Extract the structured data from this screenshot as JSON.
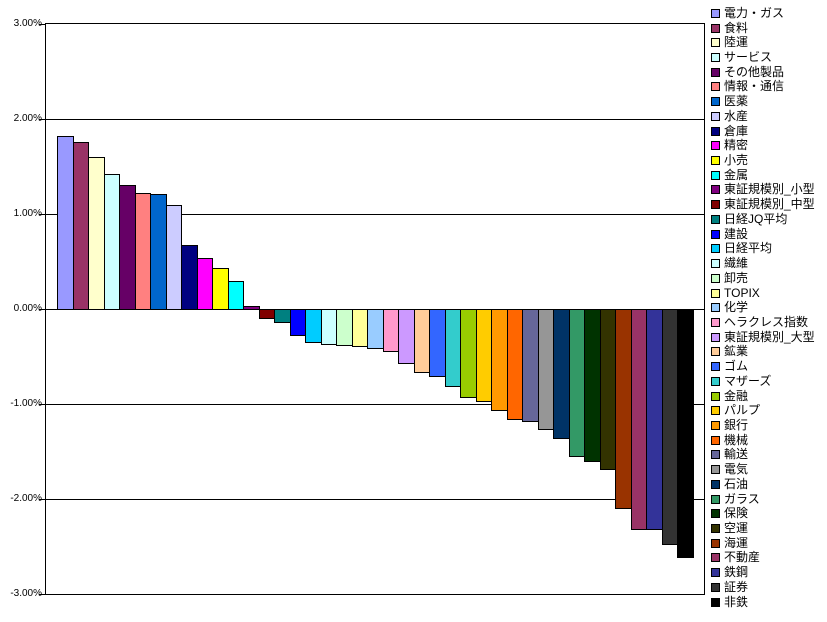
{
  "chart_data": {
    "type": "bar",
    "title": "",
    "xlabel": "",
    "ylabel": "",
    "ylim": [
      -3,
      3
    ],
    "grid": "horizontal-1pct",
    "legend_position": "right",
    "background": "#ffffff",
    "yticks": [
      {
        "label": "3.00%",
        "value": 3
      },
      {
        "label": "2.00%",
        "value": 2
      },
      {
        "label": "1.00%",
        "value": 1
      },
      {
        "label": "0.00%",
        "value": 0
      },
      {
        "label": "-1.00%",
        "value": -1
      },
      {
        "label": "-2.00%",
        "value": -2
      },
      {
        "label": "-3.00%",
        "value": -3
      }
    ],
    "series": [
      {
        "label": "電力・ガス",
        "value": 1.82,
        "color": "#9999FF"
      },
      {
        "label": "食料",
        "value": 1.76,
        "color": "#993366"
      },
      {
        "label": "陸運",
        "value": 1.6,
        "color": "#FFFFCC"
      },
      {
        "label": "サービス",
        "value": 1.42,
        "color": "#CCFFFF"
      },
      {
        "label": "その他製品",
        "value": 1.3,
        "color": "#660066"
      },
      {
        "label": "情報・通信",
        "value": 1.22,
        "color": "#FF8080"
      },
      {
        "label": "医薬",
        "value": 1.21,
        "color": "#0066CC"
      },
      {
        "label": "水産",
        "value": 1.09,
        "color": "#CCCCFF"
      },
      {
        "label": "倉庫",
        "value": 0.67,
        "color": "#000080"
      },
      {
        "label": "精密",
        "value": 0.54,
        "color": "#FF00FF"
      },
      {
        "label": "小売",
        "value": 0.43,
        "color": "#FFFF00"
      },
      {
        "label": "金属",
        "value": 0.29,
        "color": "#00FFFF"
      },
      {
        "label": "東証規模別_小型",
        "value": 0.03,
        "color": "#800080"
      },
      {
        "label": "東証規模別_中型",
        "value": -0.09,
        "color": "#800000"
      },
      {
        "label": "日経JQ平均",
        "value": -0.14,
        "color": "#008080"
      },
      {
        "label": "建設",
        "value": -0.27,
        "color": "#0000FF"
      },
      {
        "label": "日経平均",
        "value": -0.35,
        "color": "#00CCFF"
      },
      {
        "label": "繊維",
        "value": -0.37,
        "color": "#CCFFFF"
      },
      {
        "label": "卸売",
        "value": -0.38,
        "color": "#CCFFCC"
      },
      {
        "label": "TOPIX",
        "value": -0.39,
        "color": "#FFFF99"
      },
      {
        "label": "化学",
        "value": -0.41,
        "color": "#99CCFF"
      },
      {
        "label": "ヘラクレス指数",
        "value": -0.44,
        "color": "#FF99CC"
      },
      {
        "label": "東証規模別_大型",
        "value": -0.57,
        "color": "#CC99FF"
      },
      {
        "label": "鉱業",
        "value": -0.66,
        "color": "#FFCC99"
      },
      {
        "label": "ゴム",
        "value": -0.71,
        "color": "#3366FF"
      },
      {
        "label": "マザーズ",
        "value": -0.81,
        "color": "#33CCCC"
      },
      {
        "label": "金融",
        "value": -0.93,
        "color": "#99CC00"
      },
      {
        "label": "パルプ",
        "value": -0.97,
        "color": "#FFCC00"
      },
      {
        "label": "銀行",
        "value": -1.06,
        "color": "#FF9900"
      },
      {
        "label": "機械",
        "value": -1.16,
        "color": "#FF6600"
      },
      {
        "label": "輸送",
        "value": -1.18,
        "color": "#666699"
      },
      {
        "label": "電気",
        "value": -1.26,
        "color": "#969696"
      },
      {
        "label": "石油",
        "value": -1.36,
        "color": "#003366"
      },
      {
        "label": "ガラス",
        "value": -1.55,
        "color": "#339966"
      },
      {
        "label": "保険",
        "value": -1.6,
        "color": "#003300"
      },
      {
        "label": "空運",
        "value": -1.68,
        "color": "#333300"
      },
      {
        "label": "海運",
        "value": -2.09,
        "color": "#993300"
      },
      {
        "label": "不動産",
        "value": -2.32,
        "color": "#993366"
      },
      {
        "label": "鉄鋼",
        "value": -2.32,
        "color": "#333399"
      },
      {
        "label": "証券",
        "value": -2.47,
        "color": "#333333"
      },
      {
        "label": "非鉄",
        "value": -2.61,
        "color": "#000000"
      }
    ]
  }
}
